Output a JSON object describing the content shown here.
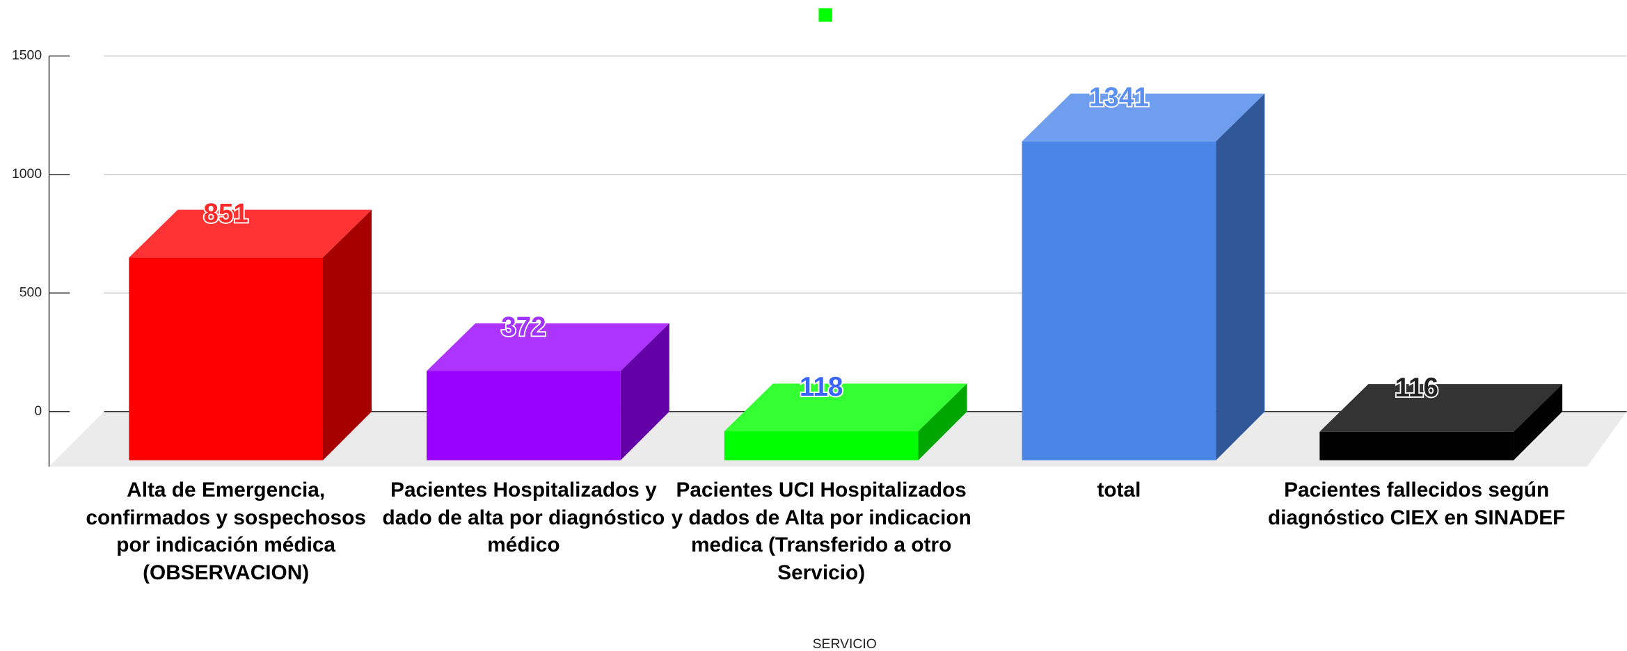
{
  "chart_data": {
    "type": "bar3d",
    "x_label": "SERVICIO",
    "categories": [
      "Alta de Emergencia, confirmados y sospechosos  por indicación médica (OBSERVACION)",
      "Pacientes Hospitalizados y dado de alta por diagnóstico médico",
      "Pacientes UCI Hospitalizados y dados de Alta por indicacion medica (Transferido a otro Servicio)",
      "total",
      "Pacientes fallecidos según diagnóstico CIEX en SINADEF"
    ],
    "values": [
      851,
      372,
      118,
      1341,
      116
    ],
    "colors": [
      "#ff0000",
      "#9900ff",
      "#00ff00",
      "#4a86e8",
      "#000000"
    ],
    "label_colors": [
      "#ff2a2a",
      "#a033ff",
      "#3c64ff",
      "#5a8ef0",
      "#222222"
    ],
    "legend_color": "#00ff00",
    "ylim": [
      0,
      1500
    ],
    "yticks": [
      0,
      500,
      1000,
      1500
    ],
    "grid": true
  }
}
